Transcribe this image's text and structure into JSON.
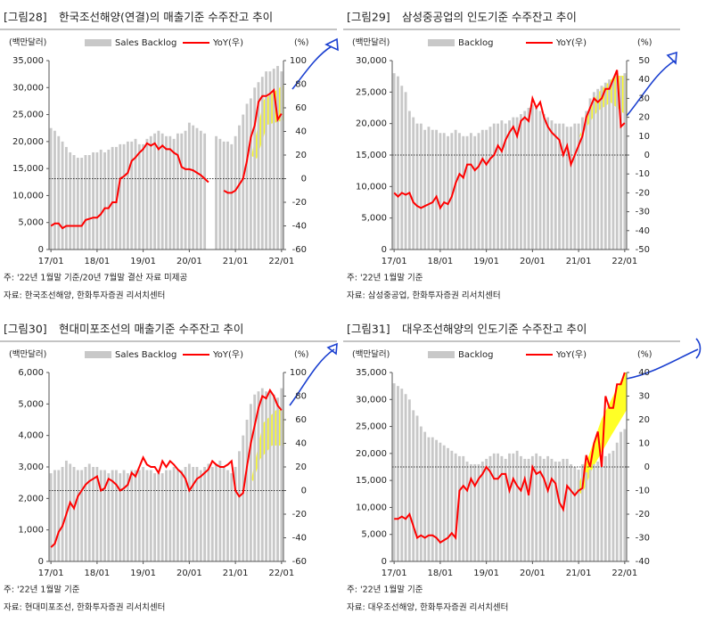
{
  "chart_data": [
    {
      "type": "combo",
      "label": "[그림28]",
      "title": "한국조선해양(연결)의 매출기준 수주잔고 추이",
      "y_label": "(백만달러)",
      "y2_label": "(%)",
      "note": "주: '22년 1월말 기준/20년 7월말 결산 자료 미제공",
      "source": "자료: 한국조선해양, 한화투자증권 리서치센터",
      "categories": [
        "17/01",
        null,
        null,
        null,
        null,
        null,
        null,
        null,
        null,
        null,
        null,
        null,
        "18/01",
        null,
        null,
        null,
        null,
        null,
        null,
        null,
        null,
        null,
        null,
        null,
        "19/01",
        null,
        null,
        null,
        null,
        null,
        null,
        null,
        null,
        null,
        null,
        null,
        "20/01",
        null,
        null,
        null,
        null,
        null,
        null,
        null,
        null,
        null,
        null,
        null,
        "21/01",
        null,
        null,
        null,
        null,
        null,
        null,
        null,
        null,
        null,
        null,
        null,
        "22/01"
      ],
      "series": [
        {
          "name": "Sales Backlog",
          "type": "bar",
          "color": "#c8c8c8",
          "values": [
            22500,
            22000,
            21000,
            20000,
            19000,
            18000,
            17500,
            17000,
            17000,
            17500,
            17500,
            18000,
            18000,
            18500,
            18000,
            18500,
            19000,
            19000,
            19500,
            19500,
            20000,
            20000,
            20500,
            19500,
            19500,
            20500,
            21000,
            21500,
            22000,
            21500,
            21000,
            21000,
            20500,
            21500,
            21500,
            22000,
            23500,
            23000,
            22500,
            22000,
            21500,
            null,
            null,
            21000,
            20500,
            20000,
            20000,
            19500,
            21000,
            23000,
            25000,
            27000,
            28000,
            30000,
            31000,
            32000,
            33000,
            33000,
            33500,
            34000,
            33000
          ]
        },
        {
          "name": "YoY(우)",
          "type": "line",
          "axis": "y2",
          "color": "#ff0000",
          "values": [
            -40,
            -38,
            -38,
            -42,
            -40,
            -40,
            -40,
            -40,
            -40,
            -35,
            -34,
            -33,
            -33,
            -30,
            -25,
            -25,
            -20,
            -20,
            0,
            2,
            5,
            15,
            18,
            22,
            25,
            30,
            28,
            30,
            25,
            28,
            25,
            25,
            22,
            20,
            10,
            8,
            8,
            7,
            5,
            3,
            0,
            -3,
            null,
            null,
            null,
            -10,
            -12,
            -12,
            -10,
            -5,
            0,
            15,
            35,
            45,
            65,
            70,
            70,
            72,
            75,
            50,
            55
          ]
        }
      ],
      "ylim": [
        0,
        35000
      ],
      "yticks": [
        0,
        {
          "value": 5000,
          "label": "5,000"
        },
        {
          "value": 10000,
          "label": "10,000"
        },
        {
          "value": 15000,
          "label": "15,000"
        },
        {
          "value": 20000,
          "label": "20,000"
        },
        {
          "value": 25000,
          "label": "25,000"
        },
        {
          "value": 30000,
          "label": "30,000"
        },
        {
          "value": 35000,
          "label": "35,000"
        }
      ],
      "y2lim": [
        -60,
        100
      ],
      "y2ticks": [
        -60,
        -40,
        -20,
        0,
        20,
        40,
        60,
        80,
        100
      ],
      "y2_refline": 0
    },
    {
      "type": "combo",
      "label": "[그림29]",
      "title": "삼성중공업의 인도기준 수주잔고 추이",
      "y_label": "(백만달러)",
      "y2_label": "(%)",
      "note": "주: '22년 1월말 기준",
      "source": "자료: 삼성중공업, 한화투자증권 리서치센터",
      "categories": [
        "17/01",
        null,
        null,
        null,
        null,
        null,
        null,
        null,
        null,
        null,
        null,
        null,
        "18/01",
        null,
        null,
        null,
        null,
        null,
        null,
        null,
        null,
        null,
        null,
        null,
        "19/01",
        null,
        null,
        null,
        null,
        null,
        null,
        null,
        null,
        null,
        null,
        null,
        "20/01",
        null,
        null,
        null,
        null,
        null,
        null,
        null,
        null,
        null,
        null,
        null,
        "21/01",
        null,
        null,
        null,
        null,
        null,
        null,
        null,
        null,
        null,
        null,
        null,
        "22/01"
      ],
      "series": [
        {
          "name": "Backlog",
          "type": "bar",
          "color": "#c8c8c8",
          "values": [
            28000,
            27500,
            26000,
            25000,
            22000,
            21000,
            20000,
            20000,
            19000,
            19500,
            19000,
            19000,
            18500,
            18500,
            18000,
            18500,
            19000,
            18500,
            18000,
            18000,
            18500,
            18000,
            18500,
            19000,
            19000,
            19500,
            20000,
            20000,
            20500,
            20000,
            20500,
            21000,
            21000,
            21500,
            22000,
            22500,
            23000,
            22500,
            22000,
            21500,
            21000,
            20500,
            20000,
            20000,
            20000,
            19500,
            19500,
            20000,
            20000,
            21000,
            22000,
            24000,
            25000,
            25500,
            26000,
            26500,
            27000,
            27000,
            28000,
            27500,
            28000
          ]
        },
        {
          "name": "YoY(우)",
          "type": "line",
          "axis": "y2",
          "color": "#ff0000",
          "values": [
            -20,
            -22,
            -20,
            -21,
            -20,
            -25,
            -27,
            -28,
            -27,
            -26,
            -25,
            -22,
            -28,
            -25,
            -26,
            -22,
            -15,
            -10,
            -12,
            -5,
            -5,
            -8,
            -6,
            -2,
            -5,
            -2,
            0,
            5,
            2,
            8,
            12,
            15,
            10,
            18,
            20,
            18,
            30,
            25,
            28,
            20,
            15,
            12,
            10,
            8,
            0,
            5,
            -5,
            0,
            5,
            10,
            20,
            25,
            30,
            28,
            30,
            35,
            35,
            40,
            45,
            15,
            17
          ]
        }
      ],
      "ylim": [
        0,
        30000
      ],
      "yticks": [
        0,
        {
          "value": 5000,
          "label": "5,000"
        },
        {
          "value": 10000,
          "label": "10,000"
        },
        {
          "value": 15000,
          "label": "15,000"
        },
        {
          "value": 20000,
          "label": "20,000"
        },
        {
          "value": 25000,
          "label": "25,000"
        },
        {
          "value": 30000,
          "label": "30,000"
        }
      ],
      "y2lim": [
        -50,
        50
      ],
      "y2ticks": [
        -50,
        -40,
        -30,
        -20,
        -10,
        0,
        10,
        20,
        30,
        40,
        50
      ],
      "y2_refline": 0
    },
    {
      "type": "combo",
      "label": "[그림30]",
      "title": "현대미포조선의 매출기준 수주잔고 추이",
      "y_label": "(백만달러)",
      "y2_label": "(%)",
      "note": "주: '22년 1월말 기준",
      "source": "자료: 현대미포조선, 한화투자증권 리서치센터",
      "categories": [
        "17/01",
        null,
        null,
        null,
        null,
        null,
        null,
        null,
        null,
        null,
        null,
        null,
        "18/01",
        null,
        null,
        null,
        null,
        null,
        null,
        null,
        null,
        null,
        null,
        null,
        "19/01",
        null,
        null,
        null,
        null,
        null,
        null,
        null,
        null,
        null,
        null,
        null,
        "20/01",
        null,
        null,
        null,
        null,
        null,
        null,
        null,
        null,
        null,
        null,
        null,
        "21/01",
        null,
        null,
        null,
        null,
        null,
        null,
        null,
        null,
        null,
        null,
        null,
        "22/01"
      ],
      "series": [
        {
          "name": "Sales Backlog",
          "type": "bar",
          "color": "#c8c8c8",
          "values": [
            2800,
            2900,
            2900,
            3000,
            3200,
            3100,
            3000,
            2900,
            2900,
            3000,
            3100,
            3000,
            3000,
            2900,
            2900,
            2800,
            2900,
            2900,
            2800,
            2900,
            2800,
            2900,
            2900,
            2900,
            3000,
            2900,
            2900,
            2800,
            2800,
            2800,
            2900,
            2900,
            3000,
            2900,
            2900,
            3000,
            3100,
            3000,
            3000,
            2900,
            3000,
            3100,
            3000,
            3100,
            3200,
            3000,
            2900,
            2800,
            3000,
            3500,
            4000,
            4500,
            5000,
            5300,
            5400,
            5500,
            5400,
            5400,
            5300,
            5200,
            5500
          ]
        },
        {
          "name": "YoY(우)",
          "type": "line",
          "axis": "y2",
          "color": "#ff0000",
          "values": [
            -48,
            -45,
            -35,
            -30,
            -20,
            -10,
            -15,
            -5,
            0,
            5,
            8,
            10,
            12,
            0,
            2,
            10,
            8,
            5,
            0,
            2,
            5,
            15,
            12,
            20,
            28,
            22,
            20,
            20,
            15,
            25,
            20,
            25,
            22,
            18,
            15,
            10,
            0,
            5,
            10,
            12,
            15,
            18,
            25,
            22,
            20,
            20,
            22,
            25,
            0,
            -5,
            -2,
            20,
            40,
            55,
            70,
            80,
            78,
            85,
            80,
            72,
            68
          ]
        }
      ],
      "ylim": [
        0,
        6000
      ],
      "yticks": [
        0,
        {
          "value": 1000,
          "label": "1,000"
        },
        {
          "value": 2000,
          "label": "2,000"
        },
        {
          "value": 3000,
          "label": "3,000"
        },
        {
          "value": 4000,
          "label": "4,000"
        },
        {
          "value": 5000,
          "label": "5,000"
        },
        {
          "value": 6000,
          "label": "6,000"
        }
      ],
      "y2lim": [
        -60,
        100
      ],
      "y2ticks": [
        -60,
        -40,
        -20,
        0,
        20,
        40,
        60,
        80,
        100
      ],
      "y2_refline": 0
    },
    {
      "type": "combo",
      "label": "[그림31]",
      "title": "대우조선해양의 인도기준 수주잔고 추이",
      "y_label": "(백만달러)",
      "y2_label": "(%)",
      "note": "주: '22년 1월말 기준",
      "source": "자료: 대우조선해양, 한화투자증권 리서치센터",
      "categories": [
        "17/01",
        null,
        null,
        null,
        null,
        null,
        null,
        null,
        null,
        null,
        null,
        null,
        "18/01",
        null,
        null,
        null,
        null,
        null,
        null,
        null,
        null,
        null,
        null,
        null,
        "19/01",
        null,
        null,
        null,
        null,
        null,
        null,
        null,
        null,
        null,
        null,
        null,
        "20/01",
        null,
        null,
        null,
        null,
        null,
        null,
        null,
        null,
        null,
        null,
        null,
        "21/01",
        null,
        null,
        null,
        null,
        null,
        null,
        null,
        null,
        null,
        null,
        null,
        "22/01"
      ],
      "series": [
        {
          "name": "Backlog",
          "type": "bar",
          "color": "#c8c8c8",
          "values": [
            33000,
            32500,
            32000,
            31000,
            30000,
            28000,
            27000,
            25000,
            24000,
            23000,
            23000,
            22500,
            22000,
            21500,
            21000,
            20500,
            20000,
            19500,
            19500,
            18500,
            18000,
            18000,
            18000,
            18500,
            19000,
            19500,
            20000,
            20000,
            19500,
            19000,
            20000,
            20000,
            20500,
            19500,
            19000,
            19000,
            19500,
            20000,
            19500,
            19000,
            19500,
            19000,
            18500,
            18500,
            19000,
            19000,
            18000,
            17500,
            17000,
            18000,
            16500,
            17000,
            18000,
            18500,
            19000,
            19500,
            20000,
            20500,
            22000,
            24000,
            24500
          ]
        },
        {
          "name": "YoY(우)",
          "type": "line",
          "axis": "y2",
          "color": "#ff0000",
          "values": [
            -22,
            -22,
            -21,
            -22,
            -20,
            -25,
            -30,
            -29,
            -30,
            -29,
            -29,
            -30,
            -32,
            -31,
            -30,
            -28,
            -30,
            -10,
            -8,
            -10,
            -5,
            -8,
            -5,
            -3,
            0,
            -2,
            -5,
            -5,
            -3,
            -3,
            -10,
            -5,
            -8,
            -10,
            -5,
            -12,
            0,
            -3,
            -2,
            -5,
            -10,
            -5,
            -7,
            -15,
            -18,
            -8,
            -10,
            -12,
            -10,
            -9,
            5,
            0,
            10,
            15,
            0,
            30,
            25,
            25,
            35,
            35,
            40
          ]
        }
      ],
      "ylim": [
        0,
        35000
      ],
      "yticks": [
        0,
        {
          "value": 5000,
          "label": "5,000"
        },
        {
          "value": 10000,
          "label": "10,000"
        },
        {
          "value": 15000,
          "label": "15,000"
        },
        {
          "value": 20000,
          "label": "20,000"
        },
        {
          "value": 25000,
          "label": "25,000"
        },
        {
          "value": 30000,
          "label": "30,000"
        },
        {
          "value": 35000,
          "label": "35,000"
        }
      ],
      "y2lim": [
        -40,
        40
      ],
      "y2ticks": [
        -40,
        -30,
        -20,
        -10,
        0,
        10,
        20,
        30,
        40
      ],
      "y2_refline": 0
    }
  ]
}
